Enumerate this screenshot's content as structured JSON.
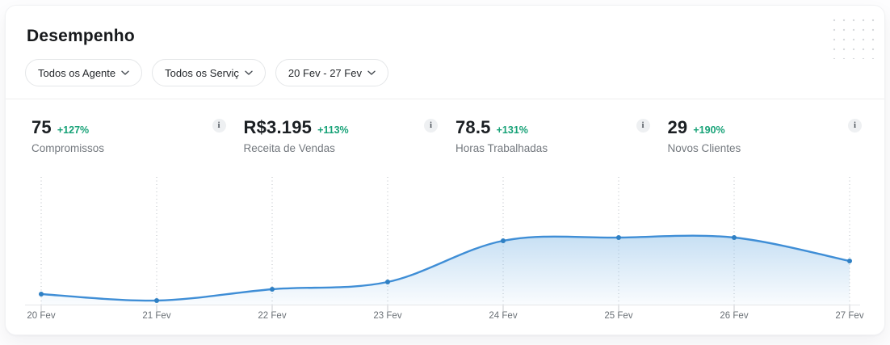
{
  "header": {
    "title": "Desempenho",
    "filters": [
      {
        "label": "Todos os Agente"
      },
      {
        "label": "Todos os Serviç"
      },
      {
        "label": "20 Fev - 27 Fev"
      }
    ]
  },
  "kpis": [
    {
      "value": "75",
      "delta": "+127%",
      "label": "Compromissos"
    },
    {
      "value": "R$3.195",
      "delta": "+113%",
      "label": "Receita de Vendas"
    },
    {
      "value": "78.5",
      "delta": "+131%",
      "label": "Horas Trabalhadas"
    },
    {
      "value": "29",
      "delta": "+190%",
      "label": "Novos Clientes"
    }
  ],
  "icons": {
    "info": "i"
  },
  "colors": {
    "accent_green": "#17a277",
    "line_blue": "#3f8ed6",
    "dot_blue": "#2f80c4",
    "fill_blue": "#8fc0e8",
    "grid_gray": "#b7bcc2",
    "axis_gray": "#e4e6e9"
  },
  "chart_data": {
    "type": "area",
    "title": "",
    "xlabel": "",
    "ylabel": "",
    "categories": [
      "20 Fev",
      "21 Fev",
      "22 Fev",
      "23 Fev",
      "24 Fev",
      "25 Fev",
      "26 Fev",
      "27 Fev"
    ],
    "values": [
      13,
      5,
      19,
      28,
      79,
      83,
      83,
      54
    ],
    "ylim": [
      0,
      158
    ],
    "grid": "vertical-dotted",
    "legend": "none",
    "markers": true,
    "line_color": "#3f8ed6",
    "dot_color": "#2f80c4",
    "fill_color": "#8fc0e8"
  }
}
